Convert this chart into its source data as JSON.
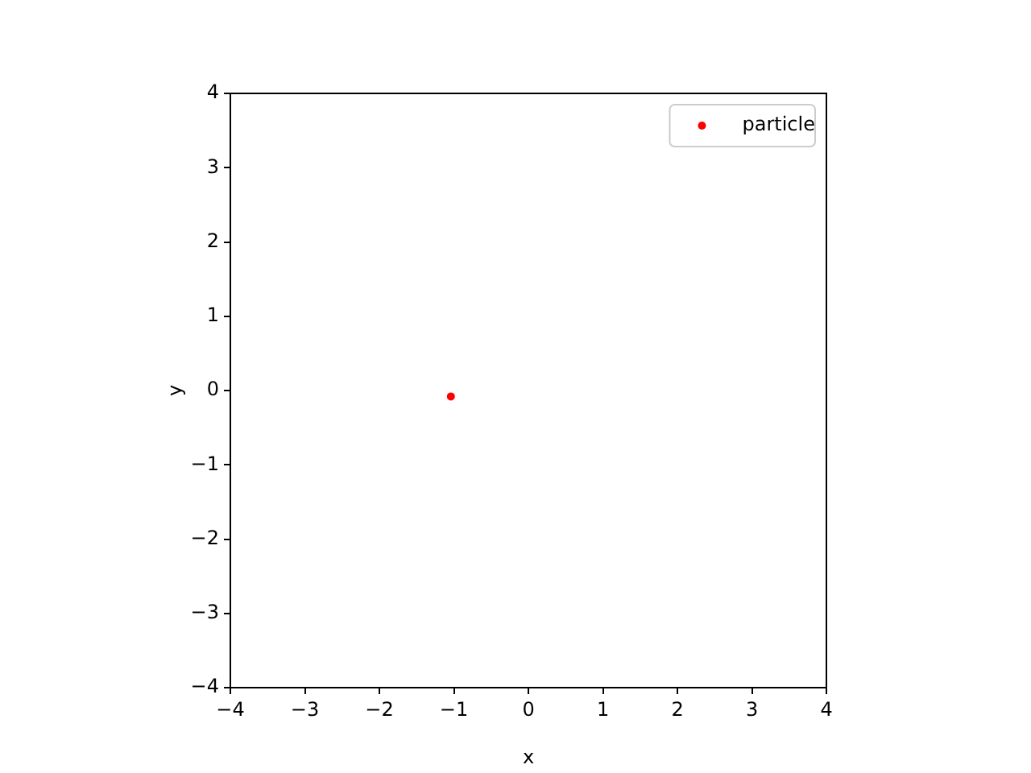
{
  "chart_data": {
    "type": "scatter",
    "xlabel": "x",
    "ylabel": "y",
    "x": [
      -1.04
    ],
    "series": [
      {
        "name": "particle",
        "color": "#ff0000",
        "values": [
          -0.08
        ]
      }
    ],
    "xlim": [
      -4,
      4
    ],
    "ylim": [
      -4,
      4
    ],
    "xticks": [
      -4,
      -3,
      -2,
      -1,
      0,
      1,
      2,
      3,
      4
    ],
    "yticks": [
      -4,
      -3,
      -2,
      -1,
      0,
      1,
      2,
      3,
      4
    ],
    "grid": false,
    "legend": "top right",
    "marker": "circle"
  }
}
